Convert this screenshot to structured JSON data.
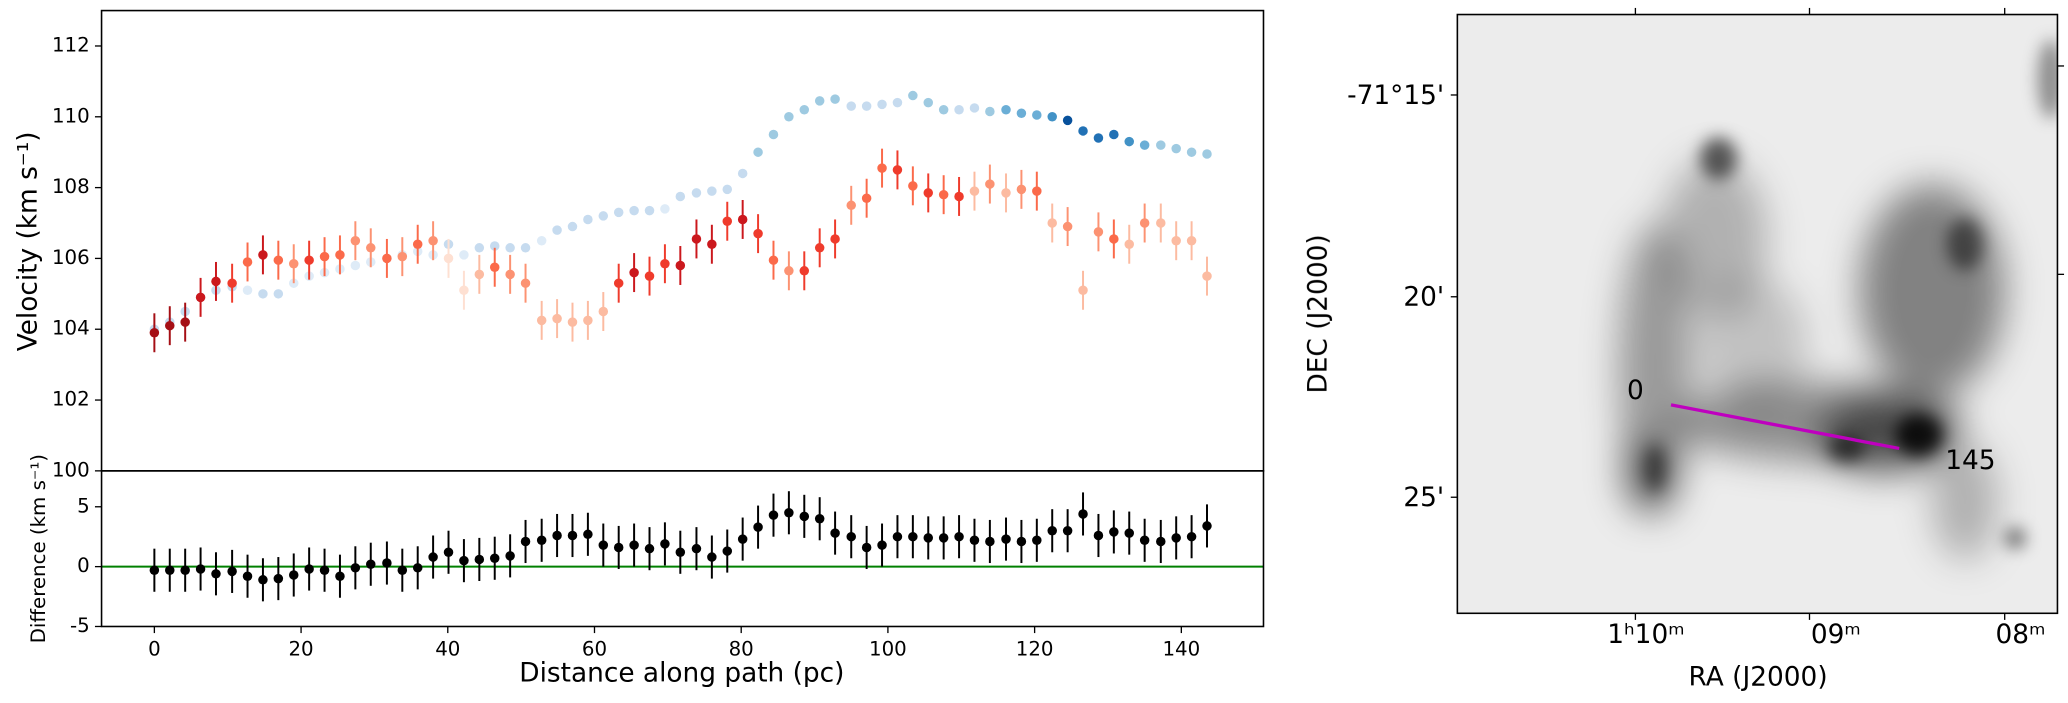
{
  "chart_data": [
    {
      "type": "scatter",
      "ylabel": "Velocity (km s⁻¹)",
      "xlim": [
        -7.2,
        151.2
      ],
      "ylim": [
        100,
        113
      ],
      "yticks": [
        100,
        102,
        104,
        106,
        108,
        110,
        112
      ],
      "x": [
        0,
        2.1,
        4.2,
        6.3,
        8.4,
        10.6,
        12.7,
        14.8,
        16.9,
        19.0,
        21.1,
        23.2,
        25.3,
        27.4,
        29.5,
        31.7,
        33.8,
        35.9,
        38.0,
        40.1,
        42.2,
        44.3,
        46.4,
        48.5,
        50.6,
        52.8,
        54.9,
        57.0,
        59.1,
        61.2,
        63.3,
        65.4,
        67.5,
        69.6,
        71.7,
        73.9,
        76.0,
        78.1,
        80.2,
        82.3,
        84.4,
        86.5,
        88.6,
        90.7,
        92.8,
        95.0,
        97.1,
        99.2,
        101.3,
        103.4,
        105.5,
        107.6,
        109.7,
        111.8,
        113.9,
        116.1,
        118.2,
        120.3,
        122.4,
        124.5,
        126.6,
        128.7,
        130.8,
        132.9,
        135.0,
        137.2,
        139.3,
        141.4,
        143.5
      ],
      "series": [
        {
          "yerr": 0.12,
          "values": [
            104.0,
            104.2,
            104.5,
            104.9,
            105.1,
            105.2,
            105.1,
            105.0,
            105.0,
            105.3,
            105.5,
            105.6,
            105.7,
            105.8,
            105.9,
            106.0,
            106.1,
            106.2,
            106.1,
            106.4,
            106.1,
            106.3,
            106.35,
            106.3,
            106.3,
            106.5,
            106.8,
            106.9,
            107.1,
            107.2,
            107.3,
            107.35,
            107.35,
            107.4,
            107.75,
            107.85,
            107.9,
            107.95,
            108.4,
            109.0,
            109.5,
            110.0,
            110.2,
            110.45,
            110.5,
            110.3,
            110.3,
            110.35,
            110.4,
            110.6,
            110.4,
            110.2,
            110.2,
            110.25,
            110.15,
            110.2,
            110.1,
            110.05,
            110.0,
            109.9,
            109.6,
            109.4,
            109.5,
            109.3,
            109.2,
            109.2,
            109.1,
            109.0,
            108.95
          ],
          "colors": [
            "#c6dbef",
            "#c6dbef",
            "#c6dbef",
            "#c6dbef",
            "#c6dbef",
            "#c6dbef",
            "#deebf7",
            "#c6dbef",
            "#c6dbef",
            "#deebf7",
            "#deebf7",
            "#deebf7",
            "#deebf7",
            "#deebf7",
            "#deebf7",
            "#deebf7",
            "#deebf7",
            "#deebf7",
            "#deebf7",
            "#c6dbef",
            "#deebf7",
            "#c6dbef",
            "#c6dbef",
            "#c6dbef",
            "#c6dbef",
            "#deebf7",
            "#c6dbef",
            "#c6dbef",
            "#c6dbef",
            "#c6dbef",
            "#c6dbef",
            "#c6dbef",
            "#c6dbef",
            "#deebf7",
            "#c6dbef",
            "#c6dbef",
            "#c6dbef",
            "#c6dbef",
            "#c6dbef",
            "#9ecae1",
            "#9ecae1",
            "#9ecae1",
            "#9ecae1",
            "#9ecae1",
            "#9ecae1",
            "#c6dbef",
            "#c6dbef",
            "#c6dbef",
            "#c6dbef",
            "#9ecae1",
            "#9ecae1",
            "#9ecae1",
            "#c6dbef",
            "#c6dbef",
            "#9ecae1",
            "#6baed6",
            "#6baed6",
            "#6baed6",
            "#4292c6",
            "#08519c",
            "#2171b5",
            "#2171b5",
            "#2171b5",
            "#4292c6",
            "#6baed6",
            "#9ecae1",
            "#9ecae1",
            "#9ecae1",
            "#9ecae1"
          ]
        },
        {
          "yerr": 0.55,
          "values": [
            103.9,
            104.1,
            104.2,
            104.9,
            105.35,
            105.3,
            105.9,
            106.1,
            105.95,
            105.85,
            105.95,
            106.05,
            106.1,
            106.5,
            106.3,
            106.0,
            106.05,
            106.4,
            106.5,
            106.0,
            105.1,
            105.55,
            105.75,
            105.55,
            105.3,
            104.25,
            104.3,
            104.2,
            104.25,
            104.5,
            105.3,
            105.6,
            105.5,
            105.85,
            105.8,
            106.55,
            106.4,
            107.05,
            107.1,
            106.7,
            105.95,
            105.65,
            105.65,
            106.3,
            106.55,
            107.5,
            107.7,
            108.55,
            108.5,
            108.05,
            107.85,
            107.8,
            107.75,
            107.9,
            108.1,
            107.85,
            107.95,
            107.9,
            107.0,
            106.9,
            105.1,
            106.75,
            106.55,
            106.4,
            107.0,
            107.0,
            106.5,
            106.5,
            105.5
          ],
          "colors": [
            "#a50f15",
            "#a50f15",
            "#a50f15",
            "#cb181d",
            "#cb181d",
            "#ef3b2c",
            "#fb6a4a",
            "#cb181d",
            "#fb6a4a",
            "#fc9272",
            "#ef3b2c",
            "#fb6a4a",
            "#fb6a4a",
            "#fc9272",
            "#fc9272",
            "#fb6a4a",
            "#fc9272",
            "#fb6a4a",
            "#fc9272",
            "#fee0d2",
            "#fee0d2",
            "#fcbba1",
            "#fb6a4a",
            "#fc9272",
            "#fc9272",
            "#fcbba1",
            "#fcbba1",
            "#fcbba1",
            "#fcbba1",
            "#fcbba1",
            "#ef3b2c",
            "#cb181d",
            "#ef3b2c",
            "#ef3b2c",
            "#cb181d",
            "#cb181d",
            "#cb181d",
            "#ef3b2c",
            "#cb181d",
            "#ef3b2c",
            "#fb6a4a",
            "#fc9272",
            "#ef3b2c",
            "#ef3b2c",
            "#ef3b2c",
            "#fc9272",
            "#fb6a4a",
            "#fb6a4a",
            "#ef3b2c",
            "#fb6a4a",
            "#ef3b2c",
            "#fb6a4a",
            "#ef3b2c",
            "#fcbba1",
            "#fc9272",
            "#fcbba1",
            "#fc9272",
            "#fb6a4a",
            "#fcbba1",
            "#fc9272",
            "#fcbba1",
            "#fc9272",
            "#fb6a4a",
            "#fcbba1",
            "#fc9272",
            "#fcbba1",
            "#fcbba1",
            "#fcbba1",
            "#fcbba1"
          ]
        }
      ]
    },
    {
      "type": "scatter",
      "xlabel": "Distance along path (pc)",
      "ylabel": "Difference (km s⁻¹)",
      "xticks": [
        0,
        20,
        40,
        60,
        80,
        100,
        120,
        140
      ],
      "ylim": [
        -5,
        8
      ],
      "yticks": [
        -5,
        0,
        5
      ],
      "hline": 0,
      "hline_color": "#008000",
      "color": "#000000",
      "yerr": 1.8,
      "values": [
        -0.3,
        -0.3,
        -0.3,
        -0.2,
        -0.6,
        -0.4,
        -0.8,
        -1.1,
        -1.0,
        -0.7,
        -0.2,
        -0.3,
        -0.8,
        -0.1,
        0.2,
        0.3,
        -0.3,
        -0.1,
        0.8,
        1.2,
        0.5,
        0.6,
        0.7,
        0.9,
        2.1,
        2.2,
        2.6,
        2.6,
        2.7,
        1.8,
        1.6,
        1.8,
        1.5,
        1.9,
        1.2,
        1.5,
        0.8,
        1.3,
        2.3,
        3.3,
        4.3,
        4.5,
        4.2,
        4.0,
        2.8,
        2.5,
        1.6,
        1.8,
        2.5,
        2.5,
        2.4,
        2.4,
        2.5,
        2.2,
        2.1,
        2.3,
        2.1,
        2.2,
        3.0,
        3.0,
        4.4,
        2.6,
        2.9,
        2.8,
        2.2,
        2.1,
        2.4,
        2.5,
        3.4
      ]
    },
    {
      "type": "image",
      "xlabel": "RA (J2000)",
      "ylabel": "DEC (J2000)",
      "xtick_labels": [
        "1ʰ10ᵐ",
        "09ᵐ",
        "08ᵐ"
      ],
      "ytick_labels": [
        "-71°15'",
        "20'",
        "25'"
      ],
      "path_labels": [
        "0",
        "145"
      ],
      "path_color": "#bf00bf"
    }
  ]
}
